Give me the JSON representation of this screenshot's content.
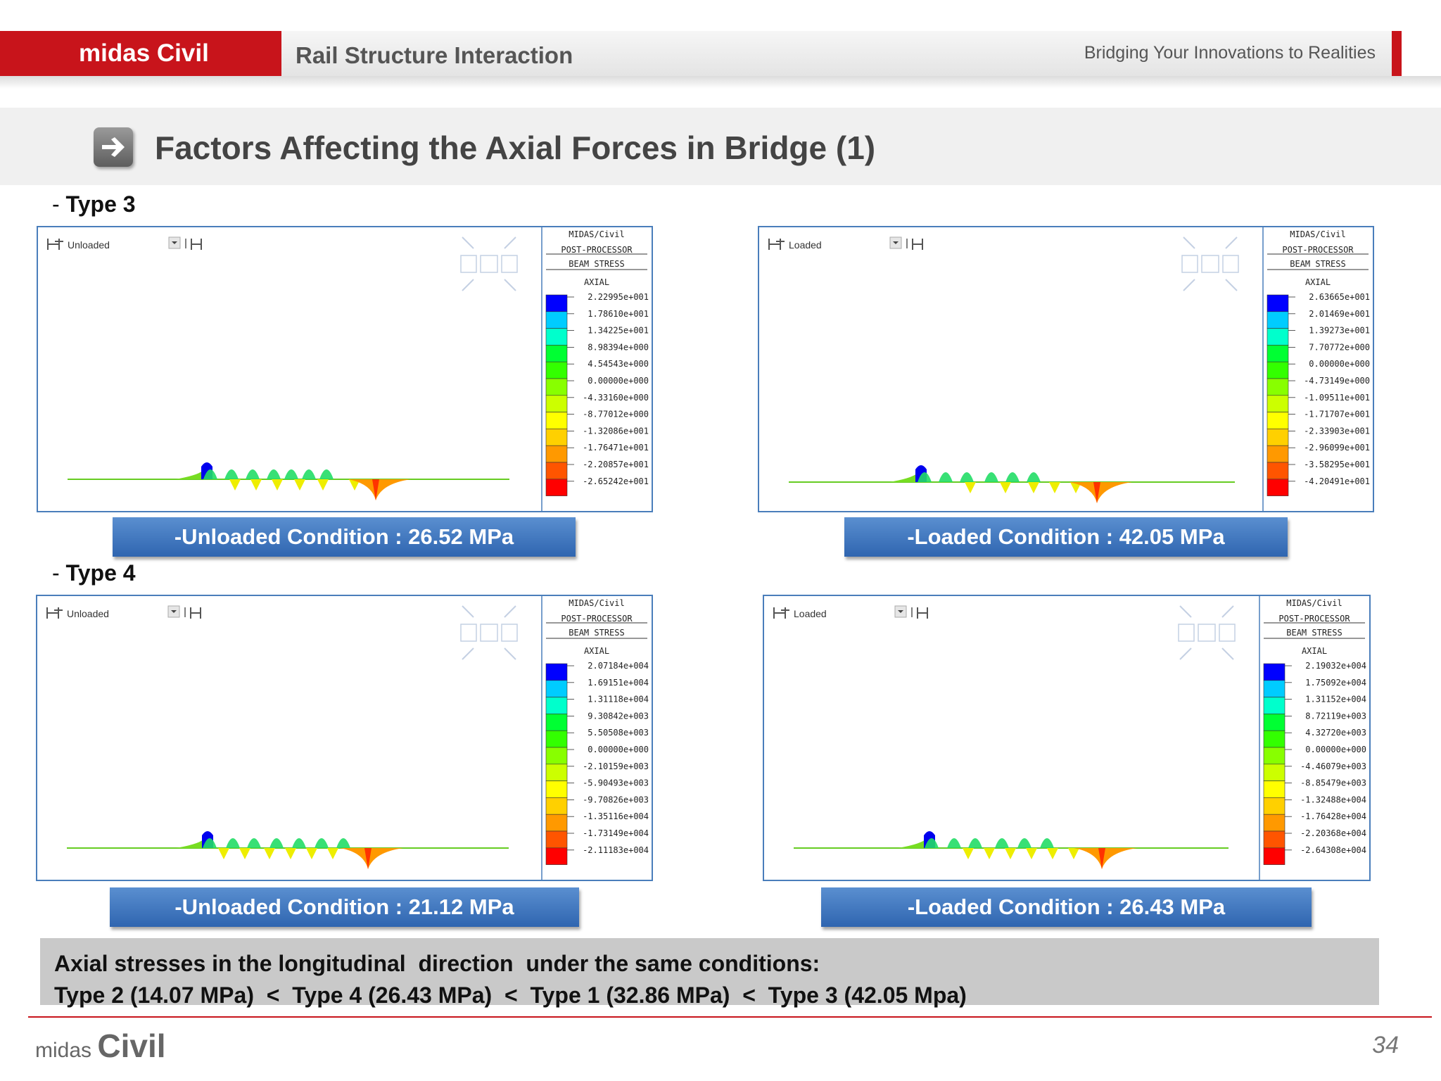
{
  "header": {
    "brand": "midas Civil",
    "title": "Rail Structure Interaction",
    "tagline": "Bridging Your Innovations to Realities"
  },
  "section_title": "Factors Affecting the Axial Forces in Bridge (1)",
  "type3_label": "Type  3",
  "type4_label": "Type  4",
  "panels": [
    {
      "dropdown": "Unloaded",
      "legend_head": [
        "MIDAS/Civil",
        "POST-PROCESSOR",
        "BEAM STRESS",
        "AXIAL"
      ],
      "legend_values": [
        "2.22995e+001",
        "1.78610e+001",
        "1.34225e+001",
        "8.98394e+000",
        "4.54543e+000",
        "0.00000e+000",
        "-4.33160e+000",
        "-8.77012e+000",
        "-1.32086e+001",
        "-1.76471e+001",
        "-2.20857e+001",
        "-2.65242e+001"
      ],
      "caption": "-Unloaded Condition : 26.52 MPa"
    },
    {
      "dropdown": "Loaded",
      "legend_head": [
        "MIDAS/Civil",
        "POST-PROCESSOR",
        "BEAM STRESS",
        "AXIAL"
      ],
      "legend_values": [
        "2.63665e+001",
        "2.01469e+001",
        "1.39273e+001",
        "7.70772e+000",
        "0.00000e+000",
        "-4.73149e+000",
        "-1.09511e+001",
        "-1.71707e+001",
        "-2.33903e+001",
        "-2.96099e+001",
        "-3.58295e+001",
        "-4.20491e+001"
      ],
      "caption": "-Loaded Condition : 42.05 MPa"
    },
    {
      "dropdown": "Unloaded",
      "legend_head": [
        "MIDAS/Civil",
        "POST-PROCESSOR",
        "BEAM STRESS",
        "AXIAL"
      ],
      "legend_values": [
        "2.07184e+004",
        "1.69151e+004",
        "1.31118e+004",
        "9.30842e+003",
        "5.50508e+003",
        "0.00000e+000",
        "-2.10159e+003",
        "-5.90493e+003",
        "-9.70826e+003",
        "-1.35116e+004",
        "-1.73149e+004",
        "-2.11183e+004"
      ],
      "caption": "-Unloaded Condition : 21.12 MPa"
    },
    {
      "dropdown": "Loaded",
      "legend_head": [
        "MIDAS/Civil",
        "POST-PROCESSOR",
        "BEAM STRESS",
        "AXIAL"
      ],
      "legend_values": [
        "2.19032e+004",
        "1.75092e+004",
        "1.31152e+004",
        "8.72119e+003",
        "4.32720e+003",
        "0.00000e+000",
        "-4.46079e+003",
        "-8.85479e+003",
        "-1.32488e+004",
        "-1.76428e+004",
        "-2.20368e+004",
        "-2.64308e+004"
      ],
      "caption": "-Loaded Condition : 26.43 MPa"
    }
  ],
  "legend_colors": [
    "#0000ff",
    "#00ccff",
    "#00ffcc",
    "#00ff33",
    "#33ff00",
    "#88ff00",
    "#ccff00",
    "#ffff00",
    "#ffd000",
    "#ff9900",
    "#ff5500",
    "#ff0000"
  ],
  "summary": {
    "line1": "Axial stresses in the longitudinal  direction  under the same conditions:",
    "line2": "Type 2 (14.07 MPa)  <  Type 4 (26.43 MPa)  <  Type 1 (32.86 MPa)  <  Type 3 (42.05 Mpa)"
  },
  "footer": {
    "logo_small": "midas",
    "logo_big": "Civil",
    "page": "34"
  }
}
